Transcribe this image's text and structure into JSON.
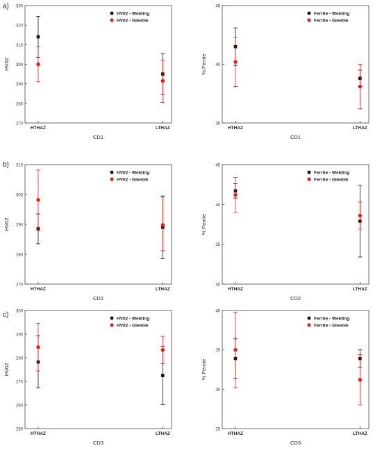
{
  "panel_letters": [
    "a)",
    "b)",
    "c)"
  ],
  "colors": {
    "welding": "#111111",
    "gleeble": "#e02020",
    "axis": "#444444"
  },
  "chart_data": [
    {
      "type": "scatter",
      "xlabel": "CD1",
      "ylabel": "HV02",
      "categories": [
        "HTHAZ",
        "LTHAZ"
      ],
      "ylim": [
        270,
        330
      ],
      "yticks": [
        270,
        280,
        290,
        300,
        310,
        320,
        330
      ],
      "legend_position": "top-right",
      "series": [
        {
          "name": "HV02 - Welding",
          "marker": "square",
          "color": "#111111",
          "values": [
            314,
            295
          ],
          "err_low": [
            303.5,
            284.5
          ],
          "err_high": [
            324.5,
            305.5
          ]
        },
        {
          "name": "HV02 - Gleeble",
          "marker": "circle",
          "color": "#e02020",
          "values": [
            300,
            291.5
          ],
          "err_low": [
            291,
            280.5
          ],
          "err_high": [
            309,
            302
          ]
        }
      ]
    },
    {
      "type": "scatter",
      "xlabel": "CD1",
      "ylabel": "% Ferrite",
      "categories": [
        "HTHAZ",
        "LTHAZ"
      ],
      "ylim": [
        35,
        45
      ],
      "yticks": [
        35,
        40,
        45
      ],
      "legend_position": "top-right",
      "series": [
        {
          "name": "Ferrite - Welding",
          "marker": "square",
          "color": "#111111",
          "values": [
            41.5,
            38.8
          ],
          "err_low": [
            39.9,
            38.1
          ],
          "err_high": [
            43.1,
            39.5
          ]
        },
        {
          "name": "Ferrite - Gleeble",
          "marker": "circle",
          "color": "#e02020",
          "values": [
            40.2,
            38.1
          ],
          "err_low": [
            38.1,
            36.2
          ],
          "err_high": [
            42.3,
            40.0
          ]
        }
      ]
    },
    {
      "type": "scatter",
      "xlabel": "CD2",
      "ylabel": "HV02",
      "categories": [
        "HTHAZ",
        "LTHAZ"
      ],
      "ylim": [
        270,
        310
      ],
      "yticks": [
        270,
        280,
        290,
        300,
        310
      ],
      "legend_position": "top-right",
      "series": [
        {
          "name": "HV02 - Welding",
          "marker": "square",
          "color": "#111111",
          "values": [
            288.5,
            289
          ],
          "err_low": [
            283.5,
            278.5
          ],
          "err_high": [
            293.5,
            299.5
          ]
        },
        {
          "name": "HV02 - Gleeble",
          "marker": "circle",
          "color": "#e02020",
          "values": [
            298.2,
            289.8
          ],
          "err_low": [
            288.3,
            281.2
          ],
          "err_high": [
            308.2,
            299.2
          ]
        }
      ]
    },
    {
      "type": "scatter",
      "xlabel": "CD2",
      "ylabel": "% Ferrite",
      "categories": [
        "HTHAZ",
        "LTHAZ"
      ],
      "ylim": [
        30,
        45
      ],
      "yticks": [
        30,
        35,
        40,
        45
      ],
      "legend_position": "top-right",
      "series": [
        {
          "name": "Ferrite - Welding",
          "marker": "square",
          "color": "#111111",
          "values": [
            41.7,
            37.9
          ],
          "err_low": [
            40.8,
            33.4
          ],
          "err_high": [
            42.6,
            42.4
          ]
        },
        {
          "name": "Ferrite - Gleeble",
          "marker": "circle",
          "color": "#e02020",
          "values": [
            41.2,
            38.6
          ],
          "err_low": [
            39.0,
            36.9
          ],
          "err_high": [
            43.4,
            40.3
          ]
        }
      ]
    },
    {
      "type": "scatter",
      "xlabel": "CD3",
      "ylabel": "HV02",
      "categories": [
        "HTHAZ",
        "LTHAZ"
      ],
      "ylim": [
        250,
        300
      ],
      "yticks": [
        250,
        260,
        270,
        280,
        290,
        300
      ],
      "legend_position": "top-right",
      "series": [
        {
          "name": "HV02 - Welding",
          "marker": "square",
          "color": "#111111",
          "values": [
            278.2,
            272.5
          ],
          "err_low": [
            267.2,
            260.2
          ],
          "err_high": [
            289.2,
            284.8
          ]
        },
        {
          "name": "HV02 - Gleeble",
          "marker": "circle",
          "color": "#e02020",
          "values": [
            284.5,
            283.3
          ],
          "err_low": [
            274.4,
            277.5
          ],
          "err_high": [
            294.6,
            289.1
          ]
        }
      ]
    },
    {
      "type": "scatter",
      "xlabel": "CD3",
      "ylabel": "% Ferrite",
      "categories": [
        "HTHAZ",
        "LTHAZ"
      ],
      "ylim": [
        25,
        40
      ],
      "yticks": [
        25,
        30,
        35,
        40
      ],
      "legend_position": "top-right",
      "series": [
        {
          "name": "Ferrite - Welding",
          "marker": "square",
          "color": "#111111",
          "values": [
            33.9,
            33.9
          ],
          "err_low": [
            31.4,
            32.8
          ],
          "err_high": [
            36.4,
            35.0
          ]
        },
        {
          "name": "Ferrite - Gleeble",
          "marker": "circle",
          "color": "#e02020",
          "values": [
            35.0,
            31.2
          ],
          "err_low": [
            30.2,
            28.0
          ],
          "err_high": [
            39.8,
            34.4
          ]
        }
      ]
    }
  ]
}
